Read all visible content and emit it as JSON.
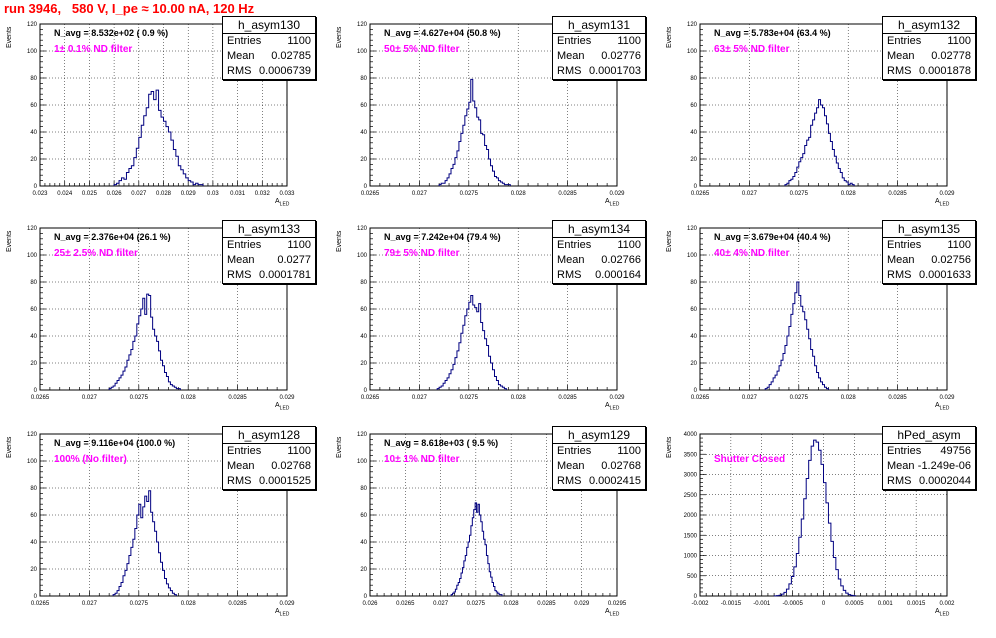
{
  "title": "run 3946,   580 V, I_pe ≈ 10.00 nA, 120 Hz",
  "colors": {
    "histogram": "#000080",
    "title": "#ff0000",
    "filter_text": "#ff00ff",
    "grid": "#000000"
  },
  "chart_data": [
    {
      "type": "bar",
      "name": "h_asym130",
      "navg": "N_avg = 8.532e+02 ( 0.9 %)",
      "filter": "1± 0.1% ND filter",
      "stats": {
        "entries": "1100",
        "mean": "0.02785",
        "rms": "0.0006739"
      },
      "xlim": [
        0.023,
        0.033
      ],
      "ylim": [
        0,
        120
      ],
      "xticks": [
        "0.023",
        "0.024",
        "0.025",
        "0.026",
        "0.027",
        "0.028",
        "0.029",
        "0.03",
        "0.031",
        "0.032",
        "0.033"
      ],
      "yticks": [
        "0",
        "20",
        "40",
        "60",
        "80",
        "100",
        "120"
      ],
      "xlabel": "A",
      "xlabel_sub": "LED",
      "ylabel": "Events",
      "bin_start": 0.026,
      "bin_width": 0.0001,
      "values": [
        1,
        2,
        4,
        6,
        5,
        10,
        13,
        15,
        21,
        28,
        36,
        45,
        52,
        58,
        68,
        70,
        64,
        71,
        56,
        51,
        48,
        44,
        40,
        34,
        27,
        22,
        15,
        12,
        9,
        6,
        4,
        3,
        1,
        2,
        1,
        1
      ]
    },
    {
      "type": "bar",
      "name": "h_asym131",
      "navg": "N_avg = 4.627e+04 (50.8 %)",
      "filter": "50± 5% ND filter",
      "stats": {
        "entries": "1100",
        "mean": "0.02776",
        "rms": "0.0001703"
      },
      "xlim": [
        0.0265,
        0.029
      ],
      "ylim": [
        0,
        120
      ],
      "xticks": [
        "0.0265",
        "0.027",
        "0.0275",
        "0.028",
        "0.0285",
        "0.029"
      ],
      "yticks": [
        "0",
        "20",
        "40",
        "60",
        "80",
        "100",
        "120"
      ],
      "xlabel": "A",
      "xlabel_sub": "LED",
      "ylabel": "Events",
      "bin_start": 0.0272,
      "bin_width": 2e-05,
      "values": [
        1,
        2,
        2,
        4,
        6,
        9,
        13,
        16,
        21,
        26,
        33,
        39,
        45,
        52,
        57,
        62,
        79,
        63,
        58,
        51,
        49,
        39,
        38,
        30,
        27,
        20,
        15,
        11,
        7,
        6,
        4,
        3,
        2,
        1,
        1,
        1
      ]
    },
    {
      "type": "bar",
      "name": "h_asym132",
      "navg": "N_avg = 5.783e+04 (63.4 %)",
      "filter": "63± 5% ND filter",
      "stats": {
        "entries": "1100",
        "mean": "0.02778",
        "rms": "0.0001878"
      },
      "xlim": [
        0.0265,
        0.029
      ],
      "ylim": [
        0,
        120
      ],
      "xticks": [
        "0.0265",
        "0.027",
        "0.0275",
        "0.028",
        "0.0285",
        "0.029"
      ],
      "yticks": [
        "0",
        "20",
        "40",
        "60",
        "80",
        "100",
        "120"
      ],
      "xlabel": "A",
      "xlabel_sub": "LED",
      "ylabel": "Events",
      "bin_start": 0.02736,
      "bin_width": 2e-05,
      "values": [
        1,
        2,
        4,
        5,
        7,
        10,
        14,
        18,
        21,
        24,
        30,
        34,
        36,
        45,
        49,
        54,
        58,
        64,
        60,
        58,
        52,
        46,
        39,
        33,
        27,
        22,
        17,
        13,
        10,
        6,
        4,
        3,
        1,
        2,
        1
      ]
    },
    {
      "type": "bar",
      "name": "h_asym133",
      "navg": "N_avg = 2.376e+04 (26.1 %)",
      "filter": "25± 2.5% ND filter",
      "stats": {
        "entries": "1100",
        "mean": "0.0277",
        "rms": "0.0001781"
      },
      "xlim": [
        0.0265,
        0.029
      ],
      "ylim": [
        0,
        120
      ],
      "xticks": [
        "0.0265",
        "0.027",
        "0.0275",
        "0.028",
        "0.0285",
        "0.029"
      ],
      "yticks": [
        "0",
        "20",
        "40",
        "60",
        "80",
        "100",
        "120"
      ],
      "xlabel": "A",
      "xlabel_sub": "LED",
      "ylabel": "Events",
      "bin_start": 0.0272,
      "bin_width": 2e-05,
      "values": [
        1,
        2,
        3,
        5,
        7,
        9,
        11,
        14,
        17,
        22,
        26,
        30,
        36,
        40,
        49,
        55,
        60,
        68,
        56,
        71,
        70,
        54,
        45,
        40,
        36,
        29,
        22,
        18,
        13,
        10,
        6,
        4,
        3,
        2,
        1,
        1
      ]
    },
    {
      "type": "bar",
      "name": "h_asym134",
      "navg": "N_avg = 7.242e+04 (79.4 %)",
      "filter": "79± 5% ND filter",
      "stats": {
        "entries": "1100",
        "mean": "0.02766",
        "rms": "0.000164"
      },
      "xlim": [
        0.0265,
        0.029
      ],
      "ylim": [
        0,
        120
      ],
      "xticks": [
        "0.0265",
        "0.027",
        "0.0275",
        "0.028",
        "0.0285",
        "0.029"
      ],
      "yticks": [
        "0",
        "20",
        "40",
        "60",
        "80",
        "100",
        "120"
      ],
      "xlabel": "A",
      "xlabel_sub": "LED",
      "ylabel": "Events",
      "bin_start": 0.02718,
      "bin_width": 2e-05,
      "values": [
        1,
        2,
        3,
        5,
        7,
        9,
        12,
        15,
        19,
        24,
        29,
        35,
        42,
        48,
        55,
        60,
        65,
        70,
        63,
        61,
        58,
        64,
        50,
        44,
        38,
        33,
        25,
        20,
        15,
        10,
        7,
        4,
        3,
        2,
        1
      ]
    },
    {
      "type": "bar",
      "name": "h_asym135",
      "navg": "N_avg = 3.679e+04 (40.4 %)",
      "filter": "40± 4% ND filter",
      "stats": {
        "entries": "1100",
        "mean": "0.02756",
        "rms": "0.0001633"
      },
      "xlim": [
        0.0265,
        0.029
      ],
      "ylim": [
        0,
        120
      ],
      "xticks": [
        "0.0265",
        "0.027",
        "0.0275",
        "0.028",
        "0.0285",
        "0.029"
      ],
      "yticks": [
        "0",
        "20",
        "40",
        "60",
        "80",
        "100",
        "120"
      ],
      "xlabel": "A",
      "xlabel_sub": "LED",
      "ylabel": "Events",
      "bin_start": 0.02716,
      "bin_width": 2e-05,
      "values": [
        1,
        2,
        4,
        6,
        9,
        11,
        14,
        18,
        22,
        27,
        33,
        40,
        47,
        56,
        64,
        72,
        80,
        70,
        62,
        58,
        52,
        45,
        38,
        30,
        25,
        18,
        13,
        9,
        6,
        4,
        2,
        1
      ]
    },
    {
      "type": "bar",
      "name": "h_asym128",
      "navg": "N_avg = 9.116e+04 (100.0 %)",
      "filter": "100% (No filter)",
      "stats": {
        "entries": "1100",
        "mean": "0.02768",
        "rms": "0.0001525"
      },
      "xlim": [
        0.0265,
        0.029
      ],
      "ylim": [
        0,
        120
      ],
      "xticks": [
        "0.0265",
        "0.027",
        "0.0275",
        "0.028",
        "0.0285",
        "0.029"
      ],
      "yticks": [
        "0",
        "20",
        "40",
        "60",
        "80",
        "100",
        "120"
      ],
      "xlabel": "A",
      "xlabel_sub": "LED",
      "ylabel": "Events",
      "bin_start": 0.02724,
      "bin_width": 2e-05,
      "values": [
        1,
        2,
        4,
        7,
        10,
        15,
        19,
        24,
        30,
        36,
        42,
        50,
        60,
        68,
        58,
        66,
        74,
        70,
        78,
        62,
        55,
        48,
        40,
        32,
        25,
        19,
        13,
        9,
        6,
        4,
        2,
        1
      ]
    },
    {
      "type": "bar",
      "name": "h_asym129",
      "navg": "N_avg = 8.618e+03 ( 9.5 %)",
      "filter": "10± 1% ND filter",
      "stats": {
        "entries": "1100",
        "mean": "0.02768",
        "rms": "0.0002415"
      },
      "xlim": [
        0.026,
        0.0295
      ],
      "ylim": [
        0,
        120
      ],
      "xticks": [
        "0.026",
        "0.0265",
        "0.027",
        "0.0275",
        "0.028",
        "0.0285",
        "0.029",
        "0.0295"
      ],
      "yticks": [
        "0",
        "20",
        "40",
        "60",
        "80",
        "100",
        "120"
      ],
      "xlabel": "A",
      "xlabel_sub": "LED",
      "ylabel": "Events",
      "bin_start": 0.02715,
      "bin_width": 2e-05,
      "values": [
        1,
        2,
        3,
        5,
        8,
        10,
        13,
        17,
        21,
        26,
        30,
        36,
        40,
        45,
        52,
        58,
        64,
        69,
        62,
        68,
        60,
        55,
        48,
        42,
        38,
        30,
        24,
        18,
        14,
        10,
        7,
        4,
        3,
        2,
        1,
        1
      ]
    },
    {
      "type": "bar",
      "name": "hPed_asym",
      "navg": "",
      "filter": "Shutter Closed",
      "stats": {
        "entries": "49756",
        "mean": "-1.249e-06",
        "rms": "0.0002044"
      },
      "xlim": [
        -0.002,
        0.002
      ],
      "ylim": [
        0,
        4000
      ],
      "xticks": [
        "-0.002",
        "-0.0015",
        "-0.001",
        "-0.0005",
        "0",
        "0.0005",
        "0.001",
        "0.0015",
        "0.002"
      ],
      "yticks": [
        "0",
        "500",
        "1000",
        "1500",
        "2000",
        "2500",
        "3000",
        "3500",
        "4000"
      ],
      "xlabel": "A",
      "xlabel_sub": "LED",
      "ylabel": "Events",
      "bin_start": -0.0008,
      "bin_width": 4e-05,
      "values": [
        3,
        8,
        20,
        45,
        90,
        170,
        300,
        480,
        720,
        1050,
        1450,
        1900,
        2400,
        2900,
        3350,
        3700,
        3850,
        3800,
        3600,
        3250,
        2800,
        2300,
        1800,
        1350,
        950,
        650,
        420,
        250,
        140,
        70,
        35,
        15,
        6
      ]
    }
  ]
}
